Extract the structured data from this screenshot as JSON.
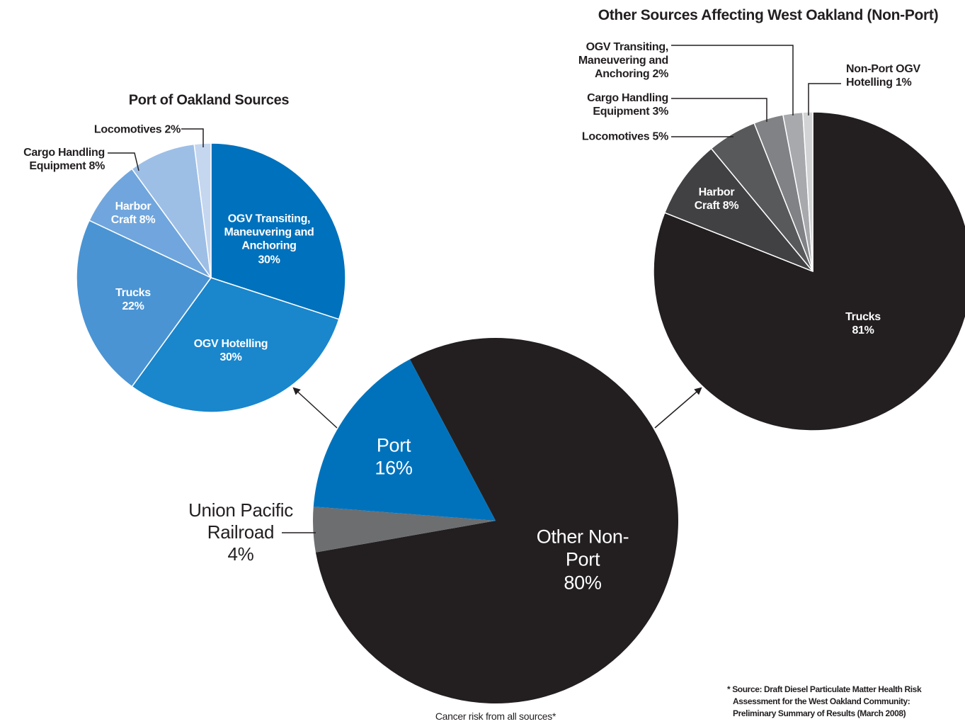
{
  "chart_data": [
    {
      "type": "pie",
      "title": "Cancer risk from all sources*",
      "categories": [
        "Other Non-Port",
        "Union Pacific Railroad",
        "Port"
      ],
      "values": [
        80,
        4,
        16
      ],
      "value_labels": [
        "80%",
        "4%",
        "16%"
      ],
      "colors": [
        "#231f20",
        "#6d6e70",
        "#0072bc"
      ],
      "annotations": [
        "* Source: Draft Diesel Particulate Matter Health Risk",
        "Assessment for the West Oakland Community:",
        "Preliminary Summary of Results (March 2008)"
      ]
    },
    {
      "type": "pie",
      "title": "Port of Oakland Sources",
      "categories": [
        "OGV Transiting, Maneuvering and Anchoring",
        "OGV Hotelling",
        "Trucks",
        "Harbor Craft",
        "Cargo Handling Equipment",
        "Locomotives"
      ],
      "values": [
        30,
        30,
        22,
        8,
        8,
        2
      ],
      "value_labels": [
        "30%",
        "30%",
        "22%",
        "8%",
        "8%",
        "2%"
      ],
      "colors": [
        "#0071bc",
        "#1a86cc",
        "#4a94d4",
        "#70a6dd",
        "#9dbfe6",
        "#c5d6ef"
      ]
    },
    {
      "type": "pie",
      "title": "Other Sources Affecting West Oakland (Non-Port)",
      "categories": [
        "Trucks",
        "Harbor Craft",
        "Locomotives",
        "Cargo Handling Equipment",
        "OGV Transiting, Maneuvering and Anchoring",
        "Non-Port OGV Hotelling"
      ],
      "values": [
        81,
        8,
        5,
        3,
        2,
        1
      ],
      "value_labels": [
        "81%",
        "8%",
        "5%",
        "3%",
        "2%",
        "1%"
      ],
      "colors": [
        "#231f20",
        "#414042",
        "#58595b",
        "#808285",
        "#a7a9ac",
        "#d1d3d4"
      ]
    }
  ]
}
